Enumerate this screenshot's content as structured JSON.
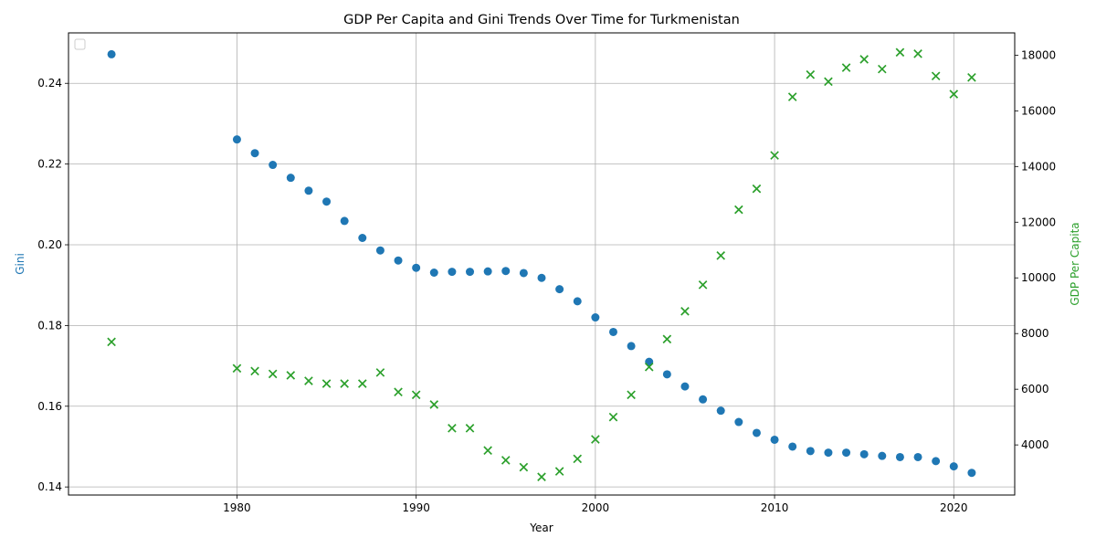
{
  "chart_data": {
    "type": "scatter",
    "title": "GDP Per Capita and Gini Trends Over Time for Turkmenistan",
    "xlabel": "Year",
    "ylabel_left": "Gini",
    "ylabel_right": "GDP Per Capita",
    "xlim": [
      1970.6,
      2023.4
    ],
    "ylim_left": [
      0.138,
      0.2525
    ],
    "ylim_right": [
      2200,
      18800
    ],
    "x_ticks": [
      1980,
      1990,
      2000,
      2010,
      2020
    ],
    "y_left_ticks": [
      0.14,
      0.16,
      0.18,
      0.2,
      0.22,
      0.24
    ],
    "y_right_ticks": [
      4000,
      6000,
      8000,
      10000,
      12000,
      14000,
      16000,
      18000
    ],
    "grid": true,
    "legend": "top-left (empty)",
    "colors": {
      "gini": "#1f77b4",
      "gdp": "#2ca02c"
    },
    "series": [
      {
        "name": "Gini",
        "axis": "left",
        "marker": "circle",
        "points": [
          [
            1973,
            0.2472
          ],
          [
            1980,
            0.2261
          ],
          [
            1981,
            0.2227
          ],
          [
            1982,
            0.2198
          ],
          [
            1983,
            0.2166
          ],
          [
            1984,
            0.2134
          ],
          [
            1985,
            0.2107
          ],
          [
            1986,
            0.2059
          ],
          [
            1987,
            0.2017
          ],
          [
            1988,
            0.1986
          ],
          [
            1989,
            0.1961
          ],
          [
            1990,
            0.1943
          ],
          [
            1991,
            0.1931
          ],
          [
            1992,
            0.1933
          ],
          [
            1993,
            0.1933
          ],
          [
            1994,
            0.1934
          ],
          [
            1995,
            0.1935
          ],
          [
            1996,
            0.193
          ],
          [
            1997,
            0.1918
          ],
          [
            1998,
            0.189
          ],
          [
            1999,
            0.186
          ],
          [
            2000,
            0.182
          ],
          [
            2001,
            0.1784
          ],
          [
            2002,
            0.1749
          ],
          [
            2003,
            0.171
          ],
          [
            2004,
            0.1679
          ],
          [
            2005,
            0.1649
          ],
          [
            2006,
            0.1617
          ],
          [
            2007,
            0.1589
          ],
          [
            2008,
            0.1561
          ],
          [
            2009,
            0.1534
          ],
          [
            2010,
            0.1517
          ],
          [
            2011,
            0.15
          ],
          [
            2012,
            0.1489
          ],
          [
            2013,
            0.1485
          ],
          [
            2014,
            0.1485
          ],
          [
            2015,
            0.1481
          ],
          [
            2016,
            0.1477
          ],
          [
            2017,
            0.1474
          ],
          [
            2018,
            0.1474
          ],
          [
            2019,
            0.1464
          ],
          [
            2020,
            0.1451
          ],
          [
            2021,
            0.1435
          ]
        ]
      },
      {
        "name": "GDP Per Capita",
        "axis": "right",
        "marker": "x",
        "points": [
          [
            1973,
            7700
          ],
          [
            1980,
            6750
          ],
          [
            1981,
            6650
          ],
          [
            1982,
            6550
          ],
          [
            1983,
            6500
          ],
          [
            1984,
            6300
          ],
          [
            1985,
            6200
          ],
          [
            1986,
            6200
          ],
          [
            1987,
            6200
          ],
          [
            1988,
            6600
          ],
          [
            1989,
            5900
          ],
          [
            1990,
            5800
          ],
          [
            1991,
            5450
          ],
          [
            1992,
            4600
          ],
          [
            1993,
            4600
          ],
          [
            1994,
            3800
          ],
          [
            1995,
            3450
          ],
          [
            1996,
            3200
          ],
          [
            1997,
            2850
          ],
          [
            1998,
            3050
          ],
          [
            1999,
            3500
          ],
          [
            2000,
            4200
          ],
          [
            2001,
            5000
          ],
          [
            2002,
            5800
          ],
          [
            2003,
            6800
          ],
          [
            2004,
            7800
          ],
          [
            2005,
            8800
          ],
          [
            2006,
            9750
          ],
          [
            2007,
            10800
          ],
          [
            2008,
            12450
          ],
          [
            2009,
            13200
          ],
          [
            2010,
            14400
          ],
          [
            2011,
            16500
          ],
          [
            2012,
            17300
          ],
          [
            2013,
            17050
          ],
          [
            2014,
            17550
          ],
          [
            2015,
            17850
          ],
          [
            2016,
            17500
          ],
          [
            2017,
            18100
          ],
          [
            2018,
            18050
          ],
          [
            2019,
            17250
          ],
          [
            2020,
            16600
          ],
          [
            2021,
            17200
          ]
        ]
      }
    ]
  }
}
